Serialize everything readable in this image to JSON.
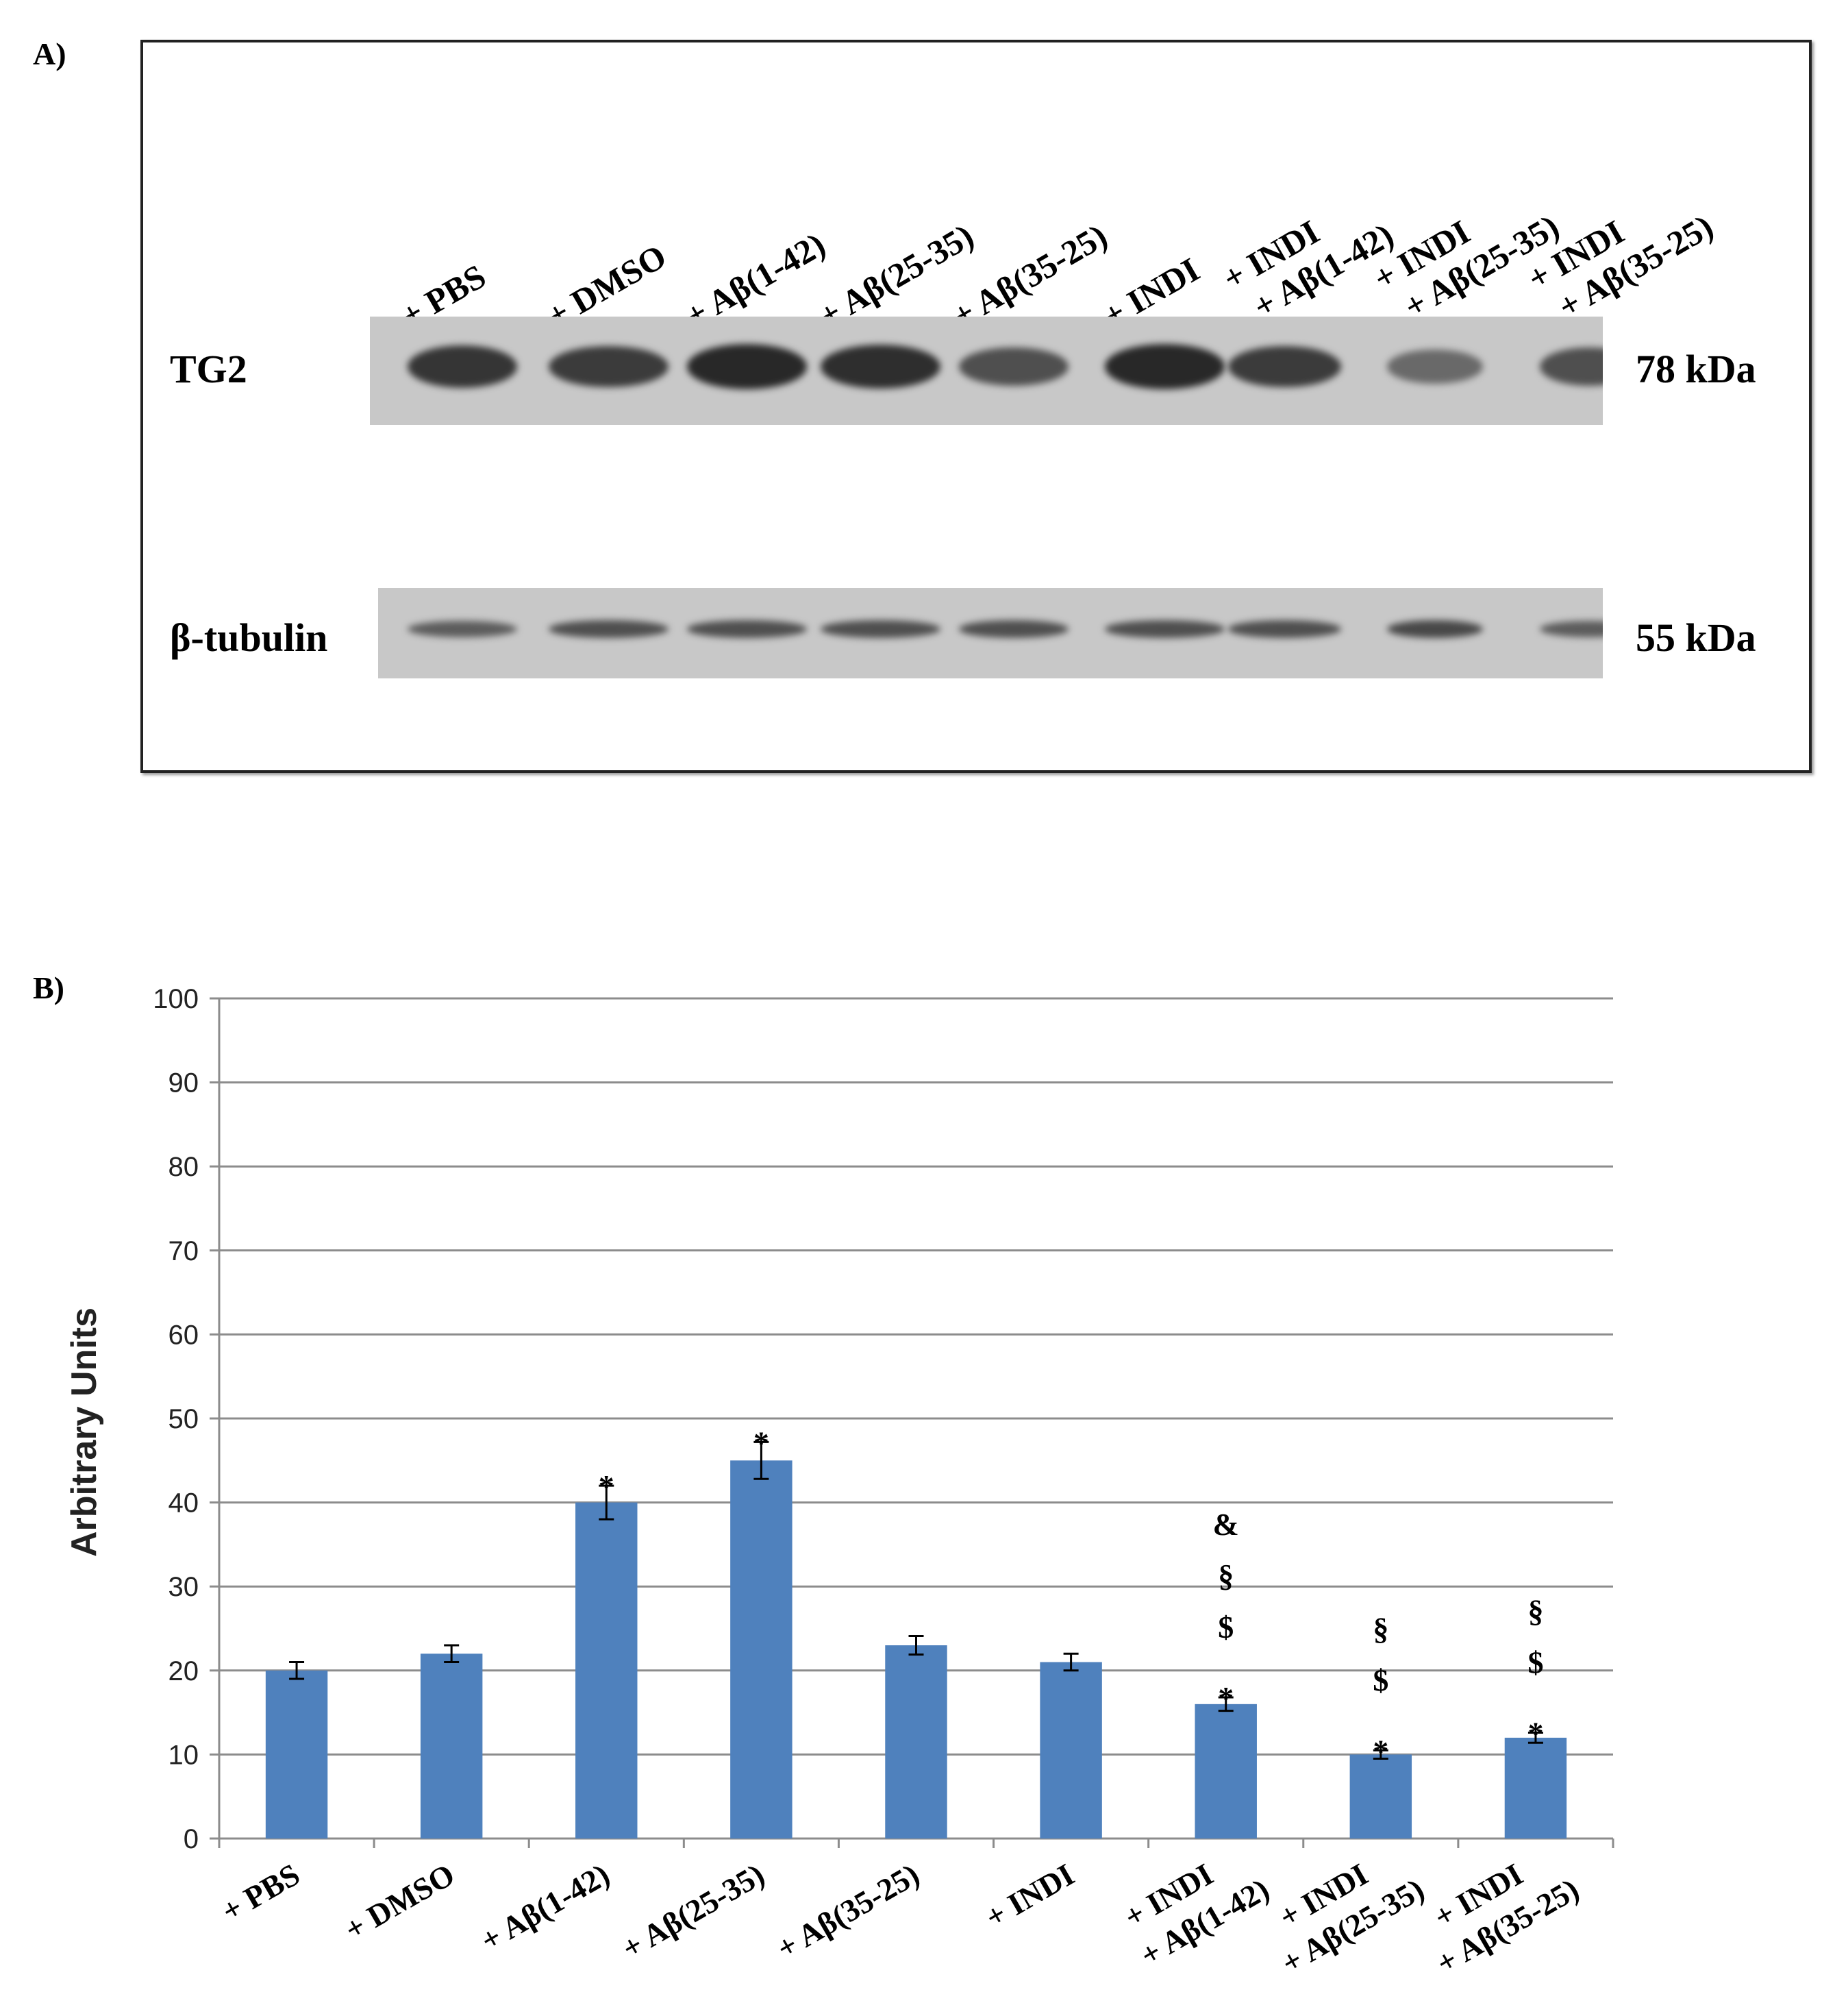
{
  "panel_a": {
    "label": "A)",
    "lanes": [
      [
        "+ PBS"
      ],
      [
        "+ DMSO"
      ],
      [
        "+ Aβ(1-42)"
      ],
      [
        "+ Aβ(25-35)"
      ],
      [
        "+ Aβ(35-25)"
      ],
      [
        "+ INDI"
      ],
      [
        "+ INDI",
        "+ Aβ(1-42)"
      ],
      [
        "+ INDI",
        "+ Aβ(25-35)"
      ],
      [
        "+ INDI",
        "+ Aβ(35-25)"
      ]
    ],
    "rows": [
      {
        "name": "TG2",
        "size": "78 kDa",
        "band_intensity": [
          0.75,
          0.7,
          0.85,
          0.8,
          0.55,
          0.85,
          0.7,
          0.35,
          0.55
        ]
      },
      {
        "name": "β-tubulin",
        "size": "55 kDa",
        "band_intensity": [
          0.45,
          0.55,
          0.55,
          0.55,
          0.55,
          0.55,
          0.55,
          0.6,
          0.45
        ]
      }
    ]
  },
  "panel_b_label": "B)",
  "chart_data": {
    "type": "bar",
    "categories": [
      [
        "+ PBS"
      ],
      [
        "+ DMSO"
      ],
      [
        "+ Aβ(1-42)"
      ],
      [
        "+ Aβ(25-35)"
      ],
      [
        "+ Aβ(35-25)"
      ],
      [
        "+ INDI"
      ],
      [
        "+ INDI",
        "+ Aβ(1-42)"
      ],
      [
        "+ INDI",
        "+ Aβ(25-35)"
      ],
      [
        "+ INDI",
        "+ Aβ(35-25)"
      ]
    ],
    "values": [
      20,
      22,
      40,
      45,
      23,
      21,
      16,
      10,
      12
    ],
    "errors": [
      1,
      1,
      2,
      2.2,
      1.1,
      1,
      0.8,
      0.5,
      0.6
    ],
    "significance": [
      [],
      [],
      [
        "*"
      ],
      [
        "*"
      ],
      [],
      [],
      [
        "*",
        "$",
        "§",
        "&"
      ],
      [
        "*",
        "$",
        "§"
      ],
      [
        "*",
        "$",
        "§"
      ]
    ],
    "ylabel": "Arbitrary Units",
    "ylim": [
      0,
      100
    ],
    "yticks": [
      0,
      10,
      20,
      30,
      40,
      50,
      60,
      70,
      80,
      90,
      100
    ],
    "grid": true,
    "bar_color": "#4f81bd"
  }
}
